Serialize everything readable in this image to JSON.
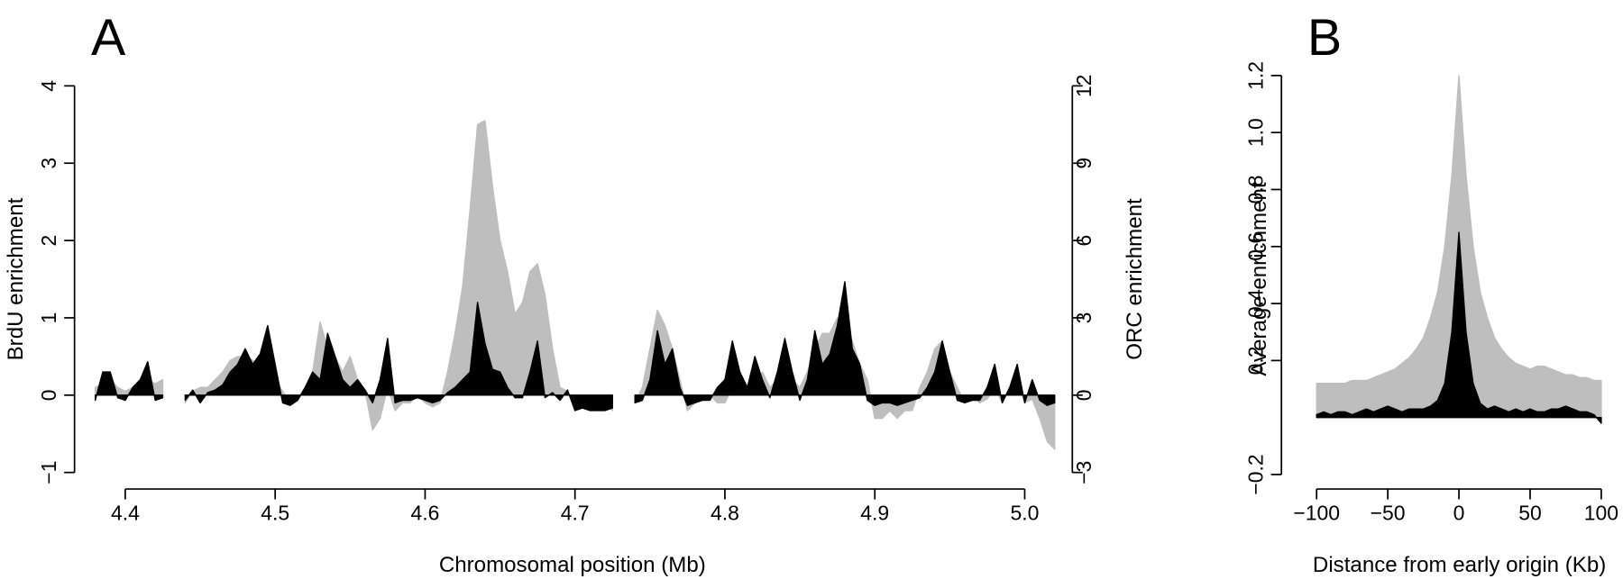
{
  "chart_data": [
    {
      "type": "area",
      "panel_label": "A",
      "xlabel": "Chromosomal position (Mb)",
      "ylabel": "BrdU enrichment",
      "y2label": "ORC enrichment",
      "xlim": [
        4.375,
        5.025
      ],
      "xticks": [
        4.4,
        4.5,
        4.6,
        4.7,
        4.8,
        4.9,
        {
          "value": 5,
          "label": "5.0"
        }
      ],
      "ylim": [
        -1,
        4
      ],
      "yticks": [
        {
          "value": -1,
          "label": "−1"
        },
        0,
        1,
        2,
        3,
        4
      ],
      "y2lim": [
        -3,
        12
      ],
      "y2ticks": [
        {
          "value": -3,
          "label": "−3"
        },
        0,
        3,
        6,
        9,
        12
      ],
      "x": [
        4.38,
        4.385,
        4.39,
        4.395,
        4.4,
        4.405,
        4.41,
        4.415,
        4.42,
        4.425,
        4.43,
        4.435,
        4.44,
        4.445,
        4.45,
        4.455,
        4.46,
        4.465,
        4.47,
        4.475,
        4.48,
        4.485,
        4.49,
        4.495,
        4.5,
        4.505,
        4.51,
        4.515,
        4.52,
        4.525,
        4.53,
        4.535,
        4.54,
        4.545,
        4.55,
        4.555,
        4.56,
        4.565,
        4.57,
        4.575,
        4.58,
        4.585,
        4.59,
        4.595,
        4.6,
        4.605,
        4.61,
        4.615,
        4.62,
        4.625,
        4.63,
        4.635,
        4.64,
        4.645,
        4.65,
        4.655,
        4.66,
        4.665,
        4.67,
        4.675,
        4.68,
        4.685,
        4.69,
        4.695,
        4.7,
        4.705,
        4.71,
        4.715,
        4.72,
        4.725,
        4.73,
        4.735,
        4.74,
        4.745,
        4.75,
        4.755,
        4.76,
        4.765,
        4.77,
        4.775,
        4.78,
        4.785,
        4.79,
        4.795,
        4.8,
        4.805,
        4.81,
        4.815,
        4.82,
        4.825,
        4.83,
        4.835,
        4.84,
        4.845,
        4.85,
        4.855,
        4.86,
        4.865,
        4.87,
        4.875,
        4.88,
        4.885,
        4.89,
        4.895,
        4.9,
        4.905,
        4.91,
        4.915,
        4.92,
        4.925,
        4.93,
        4.935,
        4.94,
        4.945,
        4.95,
        4.955,
        4.96,
        4.965,
        4.97,
        4.975,
        4.98,
        4.985,
        4.99,
        4.995,
        5.0,
        5.005,
        5.01,
        5.015,
        5.02
      ],
      "series": [
        {
          "color": "#bebebe",
          "values": [
            0.1,
            0.15,
            0.2,
            0.1,
            0.05,
            0.1,
            0.2,
            0.2,
            0.15,
            0.2,
            null,
            null,
            -0.1,
            0.05,
            0.1,
            0.1,
            0.2,
            0.3,
            0.45,
            0.5,
            0.5,
            0.45,
            0.35,
            0.4,
            0.2,
            0.05,
            -0.1,
            -0.05,
            0.1,
            0.3,
            0.95,
            0.6,
            0.5,
            0.3,
            0.5,
            0.2,
            0.05,
            -0.45,
            -0.3,
            0.1,
            -0.2,
            -0.1,
            -0.1,
            0,
            -0.1,
            -0.15,
            -0.1,
            0.3,
            0.8,
            1.4,
            2.4,
            3.5,
            3.55,
            2.7,
            2.0,
            1.6,
            1.05,
            1.2,
            1.6,
            1.7,
            1.3,
            0.6,
            0.1,
            0.05,
            -0.1,
            -0.1,
            -0.1,
            -0.1,
            -0.1,
            -0.2,
            null,
            null,
            -0.1,
            0.1,
            0.6,
            1.1,
            0.9,
            0.6,
            0.2,
            -0.2,
            -0.1,
            -0.05,
            0,
            -0.1,
            -0.1,
            0.1,
            0.2,
            0.05,
            0.1,
            0.3,
            0.1,
            0.2,
            0.4,
            0.2,
            0.1,
            0.3,
            0.6,
            0.8,
            0.8,
            1.0,
            0.9,
            0.7,
            0.4,
            0.2,
            -0.3,
            -0.3,
            -0.2,
            -0.3,
            -0.2,
            -0.2,
            0.1,
            0.3,
            0.6,
            0.7,
            0.3,
            0.1,
            -0.1,
            0,
            -0.1,
            -0.05,
            0.1,
            -0.1,
            0.1,
            0.2,
            -0.1,
            -0.05,
            -0.3,
            -0.6,
            -0.7
          ]
        },
        {
          "color": "#000000",
          "axis": "y2",
          "values": [
            -0.2,
            0.9,
            0.9,
            -0.1,
            -0.2,
            0.3,
            0.6,
            1.3,
            -0.2,
            -0.1,
            null,
            null,
            -0.2,
            0.2,
            -0.3,
            0.1,
            0.2,
            0.4,
            0.9,
            1.2,
            1.8,
            1.2,
            1.6,
            2.7,
            1.2,
            -0.3,
            -0.4,
            -0.2,
            0.3,
            0.9,
            0.6,
            2.4,
            1.5,
            0.6,
            0.3,
            0.6,
            0.2,
            -0.3,
            0.6,
            2.2,
            -0.3,
            -0.2,
            -0.2,
            -0.1,
            -0.2,
            -0.3,
            -0.2,
            0.1,
            0.3,
            0.6,
            0.9,
            3.6,
            2.0,
            1.0,
            0.9,
            0.3,
            -0.1,
            -0.1,
            0.9,
            2.1,
            -0.1,
            0.1,
            -0.2,
            0.2,
            -0.6,
            -0.5,
            -0.6,
            -0.6,
            -0.6,
            -0.5,
            null,
            null,
            -0.3,
            -0.2,
            0.6,
            2.5,
            1.2,
            1.8,
            0.3,
            -0.4,
            -0.3,
            -0.2,
            -0.2,
            0.3,
            0.6,
            2.1,
            0.9,
            0.3,
            1.5,
            0.6,
            -0.1,
            0.9,
            2.2,
            0.9,
            -0.2,
            0.6,
            2.5,
            1.2,
            1.6,
            2.7,
            4.4,
            1.8,
            1.2,
            -0.2,
            -0.4,
            -0.3,
            -0.3,
            -0.4,
            -0.3,
            -0.2,
            -0.1,
            0.3,
            0.9,
            2.1,
            0.9,
            -0.2,
            -0.3,
            -0.2,
            -0.2,
            0.3,
            1.2,
            -0.3,
            0.3,
            1.2,
            -0.3,
            0.6,
            -0.2,
            -0.4,
            -0.3
          ]
        }
      ]
    },
    {
      "type": "area",
      "panel_label": "B",
      "xlabel": "Distance from early origin (Kb)",
      "ylabel": "Average enrichment",
      "xlim": [
        -100,
        100
      ],
      "xticks": [
        {
          "value": -100,
          "label": "−100"
        },
        {
          "value": -50,
          "label": "−50"
        },
        0,
        50,
        100
      ],
      "ylim": [
        -0.2,
        1.2
      ],
      "yticks": [
        {
          "value": -0.2,
          "label": "−0.2"
        },
        0.2,
        0.4,
        0.6,
        0.8,
        {
          "value": 1,
          "label": "1.0"
        },
        1.2
      ],
      "x": [
        -100,
        -95,
        -90,
        -85,
        -80,
        -75,
        -70,
        -65,
        -60,
        -55,
        -50,
        -45,
        -40,
        -35,
        -30,
        -25,
        -20,
        -15,
        -10,
        -5,
        0,
        5,
        10,
        15,
        20,
        25,
        30,
        35,
        40,
        45,
        50,
        55,
        60,
        65,
        70,
        75,
        80,
        85,
        90,
        95,
        100
      ],
      "series": [
        {
          "color": "#bebebe",
          "values": [
            0.12,
            0.12,
            0.12,
            0.12,
            0.12,
            0.13,
            0.13,
            0.13,
            0.14,
            0.15,
            0.16,
            0.17,
            0.19,
            0.21,
            0.24,
            0.28,
            0.35,
            0.44,
            0.6,
            0.85,
            1.2,
            0.85,
            0.6,
            0.44,
            0.35,
            0.28,
            0.24,
            0.21,
            0.19,
            0.18,
            0.17,
            0.18,
            0.18,
            0.17,
            0.16,
            0.15,
            0.15,
            0.14,
            0.14,
            0.13,
            0.13
          ]
        },
        {
          "color": "#000000",
          "values": [
            0.01,
            0.02,
            0.01,
            0.02,
            0.02,
            0.01,
            0.02,
            0.03,
            0.02,
            0.03,
            0.04,
            0.03,
            0.02,
            0.03,
            0.03,
            0.03,
            0.04,
            0.06,
            0.12,
            0.3,
            0.65,
            0.3,
            0.12,
            0.05,
            0.03,
            0.04,
            0.03,
            0.02,
            0.03,
            0.02,
            0.03,
            0.02,
            0.02,
            0.03,
            0.03,
            0.04,
            0.03,
            0.02,
            0.02,
            0.01,
            -0.02
          ]
        }
      ]
    }
  ]
}
